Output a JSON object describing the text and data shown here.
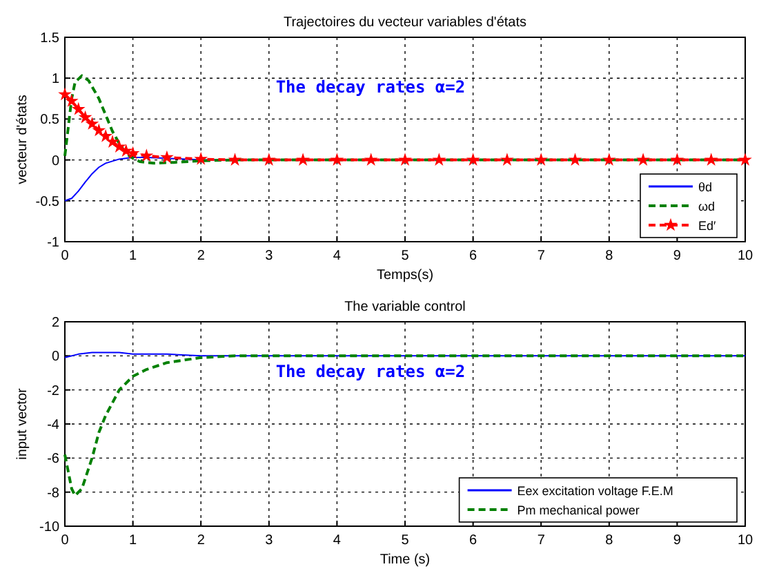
{
  "chart_data": [
    {
      "type": "line",
      "title": "Trajectoires du vecteur variables d'états",
      "xlabel": "Temps(s)",
      "ylabel": "vecteur d'états",
      "annotations": [
        "The decay rates α=2"
      ],
      "xlim": [
        0,
        10
      ],
      "ylim": [
        -1,
        1.5
      ],
      "xticks": [
        0,
        1,
        2,
        3,
        4,
        5,
        6,
        7,
        8,
        9,
        10
      ],
      "yticks": [
        -1,
        -0.5,
        0,
        0.5,
        1,
        1.5
      ],
      "grid": true,
      "legend": "bottom right",
      "series": [
        {
          "name": "θd",
          "color": "#0000ff",
          "line_style": "solid",
          "marker": "none",
          "x": [
            0,
            0.1,
            0.2,
            0.3,
            0.4,
            0.5,
            0.6,
            0.8,
            1,
            1.2,
            1.5,
            2,
            3,
            10
          ],
          "values": [
            -0.5,
            -0.47,
            -0.38,
            -0.27,
            -0.17,
            -0.09,
            -0.04,
            0.01,
            0.03,
            0.03,
            0.02,
            0,
            0,
            0
          ]
        },
        {
          "name": "ωd",
          "color": "#008000",
          "line_style": "dashed",
          "marker": "none",
          "x": [
            0,
            0.05,
            0.1,
            0.15,
            0.25,
            0.35,
            0.5,
            0.6,
            0.7,
            0.8,
            0.9,
            1,
            1.1,
            1.3,
            1.6,
            2,
            2.5,
            10
          ],
          "values": [
            0.05,
            0.4,
            0.75,
            0.95,
            1.03,
            0.97,
            0.75,
            0.55,
            0.35,
            0.2,
            0.08,
            0.02,
            -0.02,
            -0.04,
            -0.03,
            -0.01,
            0,
            0
          ]
        },
        {
          "name": "Ed′",
          "color": "#ff0000",
          "line_style": "dashed",
          "marker": "star",
          "x": [
            0,
            0.1,
            0.2,
            0.3,
            0.4,
            0.5,
            0.6,
            0.7,
            0.8,
            0.9,
            1,
            1.2,
            1.5,
            2,
            2.5,
            3,
            3.5,
            4,
            4.5,
            5,
            5.5,
            6,
            6.5,
            7,
            7.5,
            8,
            8.5,
            9,
            9.5,
            10
          ],
          "values": [
            0.8,
            0.72,
            0.62,
            0.52,
            0.44,
            0.36,
            0.29,
            0.22,
            0.16,
            0.11,
            0.08,
            0.05,
            0.03,
            0.01,
            0,
            0,
            0,
            0,
            0,
            0,
            0,
            0,
            0,
            0,
            0,
            0,
            0,
            0,
            0,
            0
          ]
        }
      ]
    },
    {
      "type": "line",
      "title": "The variable control",
      "xlabel": "Time (s)",
      "ylabel": "input vector",
      "annotations": [
        "The decay rates α=2"
      ],
      "xlim": [
        0,
        10
      ],
      "ylim": [
        -10,
        2
      ],
      "xticks": [
        0,
        1,
        2,
        3,
        4,
        5,
        6,
        7,
        8,
        9,
        10
      ],
      "yticks": [
        -10,
        -8,
        -6,
        -4,
        -2,
        0,
        2
      ],
      "grid": true,
      "legend": "bottom right",
      "series": [
        {
          "name": "Eex excitation voltage F.E.M",
          "color": "#0000ff",
          "line_style": "solid",
          "marker": "none",
          "x": [
            0,
            0.2,
            0.4,
            0.8,
            1,
            1.5,
            2,
            3,
            10
          ],
          "values": [
            -0.1,
            0.1,
            0.2,
            0.2,
            0.1,
            0.1,
            0,
            0,
            0
          ]
        },
        {
          "name": "Pm mechanical power",
          "color": "#008000",
          "line_style": "dashed",
          "marker": "none",
          "x": [
            0,
            0.1,
            0.15,
            0.25,
            0.4,
            0.5,
            0.6,
            0.8,
            1,
            1.2,
            1.5,
            2,
            2.5,
            10
          ],
          "values": [
            -5.8,
            -7.8,
            -8.2,
            -7.8,
            -6,
            -4.5,
            -3.5,
            -2,
            -1.2,
            -0.8,
            -0.4,
            -0.1,
            0,
            0
          ]
        }
      ]
    }
  ]
}
